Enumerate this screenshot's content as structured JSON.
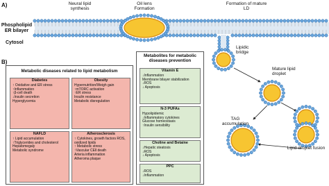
{
  "panel_a": {
    "label": "A)",
    "steps": [
      "Neural lipid synthesis",
      "Oil lens Formation",
      "Formation of mature LD"
    ],
    "membrane": "Phospholipid ER bilayer",
    "cytosol": "Cytosol",
    "bridge": "Lipidic bridge",
    "mature": "Mature lipid droplet",
    "tag": "TAG accumulation",
    "fusion": "Lipid droplet fusion"
  },
  "panel_b": {
    "label": "B)",
    "diseases": {
      "title": "Metabolic diseases related to lipid metabolism",
      "boxes": [
        {
          "title": "Diabetes",
          "items": [
            "↑ Oxidative and ER stress",
            "↑Inflammation",
            "↑β-cell death",
            "↓Insulin secretion",
            "Hyperglycemia"
          ]
        },
        {
          "title": "Obesity",
          "items": [
            "Hypernutrition/Weigh gain",
            "↑mTORC activation",
            "↑ER stress",
            "Insulin resistance",
            "Metabolic disregulation"
          ]
        },
        {
          "title": "NAFLD",
          "items": [
            "↑ Lipid accumulation",
            "↑Triglycerides and cholesterol",
            "Hepatomegaly",
            "Metabolic syndrome"
          ]
        },
        {
          "title": "Atherosclerosis",
          "items": [
            "↑ Cytokines, growth factors ROS, oxidized lipids",
            "↑ Metabolic stress",
            "↑Vascular CEll death",
            "Arteria inflammation",
            "Atheroma plaque"
          ]
        }
      ]
    },
    "metabolites": {
      "title": "Metabolites for metabolic diseases prevention",
      "boxes": [
        {
          "title": "Vitamin E",
          "items": [
            "↓Inflammation",
            "Membrane bilayer stabilization",
            "↓ROS",
            "↓ Apoptosis"
          ]
        },
        {
          "title": "N-3 PUFAs",
          "items": [
            "Hypolipidemic",
            "↓Inflammatory cytokines",
            "Glucose homeostasis",
            "↑Insulin sensibility"
          ]
        },
        {
          "title": "Choline and Betaine",
          "items": [
            "↓Hepatic steatosis",
            "↓ROS",
            "↓ Apoptosis"
          ]
        },
        {
          "title": "PPC",
          "items": [
            "↓ROS",
            "↓Inflammation"
          ]
        }
      ]
    }
  }
}
